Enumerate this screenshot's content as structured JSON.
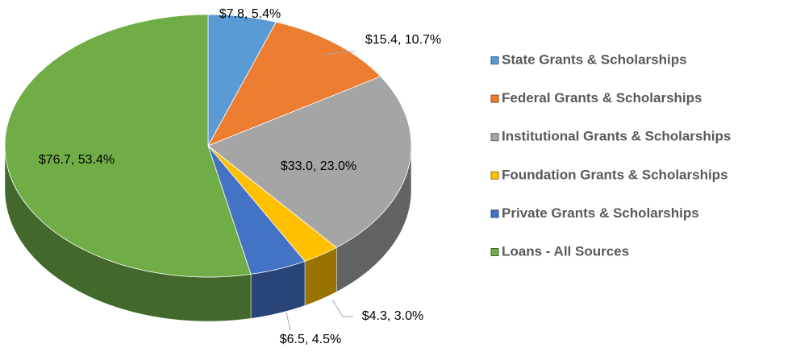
{
  "chart_data": {
    "type": "pie",
    "categories": [
      "State Grants & Scholarships",
      "Federal Grants & Scholarships",
      "Institutional Grants & Scholarships",
      "Foundation Grants & Scholarships",
      "Private Grants & Scholarships",
      "Loans - All Sources"
    ],
    "values": [
      7.8,
      15.4,
      33.0,
      4.3,
      6.5,
      76.7
    ],
    "value_labels": [
      "$7.8, 5.4%",
      "$15.4, 10.7%",
      "$33.0, 23.0%",
      "$4.3, 3.0%",
      "$6.5, 4.5%",
      "$76.7, 53.4%"
    ],
    "colors": [
      "#5b9bd5",
      "#ed7d31",
      "#a5a5a5",
      "#ffc000",
      "#4472c4",
      "#70ad47"
    ],
    "legend": "right"
  }
}
